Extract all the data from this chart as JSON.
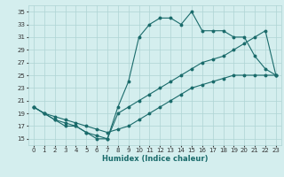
{
  "xlabel": "Humidex (Indice chaleur)",
  "xlim": [
    -0.5,
    23.5
  ],
  "ylim": [
    14,
    36
  ],
  "yticks": [
    15,
    17,
    19,
    21,
    23,
    25,
    27,
    29,
    31,
    33,
    35
  ],
  "xticks": [
    0,
    1,
    2,
    3,
    4,
    5,
    6,
    7,
    8,
    9,
    10,
    11,
    12,
    13,
    14,
    15,
    16,
    17,
    18,
    19,
    20,
    21,
    22,
    23
  ],
  "bg_color": "#d4eeee",
  "grid_color": "#aed4d4",
  "line_color": "#1a6b6b",
  "line1_x": [
    0,
    1,
    2,
    3,
    4,
    5,
    6,
    7,
    8,
    9,
    10,
    11,
    12,
    13,
    14,
    15,
    16,
    17,
    18,
    19,
    20,
    21,
    22,
    23
  ],
  "line1_y": [
    20,
    19,
    18,
    17.5,
    17,
    16,
    15,
    15,
    19,
    20,
    21,
    22,
    23,
    24,
    25,
    26,
    27,
    27.5,
    28,
    29,
    30,
    31,
    32,
    25
  ],
  "line2_x": [
    0,
    1,
    2,
    3,
    4,
    5,
    6,
    7,
    8,
    9,
    10,
    11,
    12,
    13,
    14,
    15,
    16,
    17,
    18,
    19,
    20,
    21,
    22,
    23
  ],
  "line2_y": [
    20,
    19,
    18,
    17,
    17,
    16,
    15.5,
    15,
    20,
    24,
    31,
    33,
    34,
    34,
    33,
    35,
    32,
    32,
    32,
    31,
    31,
    28,
    26,
    25
  ],
  "line3_x": [
    0,
    1,
    2,
    3,
    4,
    5,
    6,
    7,
    8,
    9,
    10,
    11,
    12,
    13,
    14,
    15,
    16,
    17,
    18,
    19,
    20,
    21,
    22,
    23
  ],
  "line3_y": [
    20,
    19,
    18.5,
    18,
    17.5,
    17,
    16.5,
    16,
    16.5,
    17,
    18,
    19,
    20,
    21,
    22,
    23,
    23.5,
    24,
    24.5,
    25,
    25,
    25,
    25,
    25
  ]
}
